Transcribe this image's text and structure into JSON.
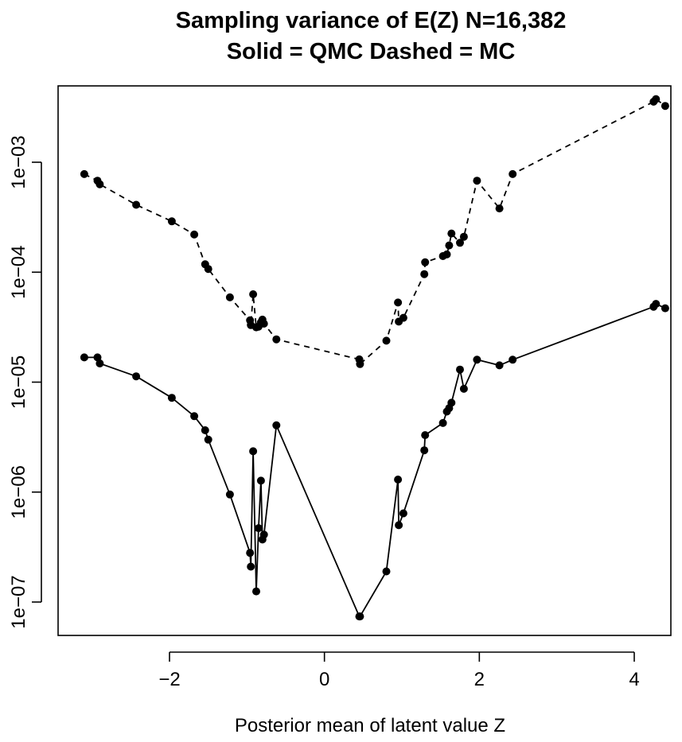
{
  "chart_data": {
    "type": "line",
    "title": "Sampling variance of E(Z)  N=16,382",
    "subtitle": "Solid = QMC   Dashed = MC",
    "xlabel": "Posterior mean of latent value Z",
    "ylabel": "",
    "x_scale": "linear",
    "y_scale": "log",
    "xlim": [
      -3.2,
      4.45
    ],
    "ylim": [
      5e-08,
      0.008
    ],
    "x_ticks": [
      -2,
      0,
      2,
      4
    ],
    "x_tick_labels": [
      "−2",
      "0",
      "2",
      "4"
    ],
    "y_ticks": [
      1e-07,
      1e-06,
      1e-05,
      0.0001,
      0.001
    ],
    "y_tick_labels": [
      "1e−07",
      "1e−06",
      "1e−05",
      "1e−04",
      "1e−03"
    ],
    "grid": false,
    "legend": "none",
    "series": [
      {
        "line_style": "dashed",
        "color": "#000000",
        "x": [
          -3.1,
          -2.93,
          -2.9,
          -2.43,
          -1.97,
          -1.68,
          -1.54,
          -1.5,
          -1.22,
          -0.96,
          -0.95,
          -0.92,
          -0.88,
          -0.85,
          -0.82,
          -0.8,
          -0.78,
          -0.62,
          0.45,
          0.46,
          0.8,
          0.95,
          0.96,
          1.02,
          1.29,
          1.3,
          1.53,
          1.58,
          1.61,
          1.64,
          1.75,
          1.8,
          1.97,
          2.26,
          2.43,
          4.25,
          4.28,
          4.4
        ],
        "y": [
          0.00078,
          0.00068,
          0.00063,
          0.00041,
          0.00029,
          0.00022,
          0.000118,
          0.000107,
          5.9e-05,
          3.65e-05,
          3.3e-05,
          6.3e-05,
          3.15e-05,
          3.2e-05,
          3.5e-05,
          3.7e-05,
          3.4e-05,
          2.45e-05,
          1.61e-05,
          1.46e-05,
          2.38e-05,
          5.3e-05,
          3.55e-05,
          3.85e-05,
          9.6e-05,
          0.000123,
          0.00014,
          0.000145,
          0.000175,
          0.000225,
          0.000185,
          0.00021,
          0.00068,
          0.00038,
          0.00078,
          0.00355,
          0.00375,
          0.00325
        ]
      },
      {
        "line_style": "solid",
        "color": "#000000",
        "x": [
          -3.1,
          -2.93,
          -2.9,
          -2.43,
          -1.97,
          -1.68,
          -1.54,
          -1.5,
          -1.22,
          -0.96,
          -0.95,
          -0.92,
          -0.88,
          -0.85,
          -0.82,
          -0.8,
          -0.78,
          -0.62,
          0.45,
          0.46,
          0.8,
          0.95,
          0.96,
          1.02,
          1.29,
          1.3,
          1.53,
          1.58,
          1.61,
          1.64,
          1.75,
          1.8,
          1.97,
          2.26,
          2.43,
          4.25,
          4.28,
          4.4
        ],
        "y": [
          1.68e-05,
          1.68e-05,
          1.48e-05,
          1.13e-05,
          7.2e-06,
          4.9e-06,
          3.65e-06,
          3e-06,
          9.5e-07,
          2.8e-07,
          2.1e-07,
          2.35e-06,
          1.25e-07,
          4.7e-07,
          1.27e-06,
          3.7e-07,
          4.1e-07,
          4.05e-06,
          7.4e-08,
          7.4e-08,
          1.9e-07,
          1.3e-06,
          5e-07,
          6.4e-07,
          2.4e-06,
          3.3e-06,
          4.25e-06,
          5.4e-06,
          5.8e-06,
          6.5e-06,
          1.3e-05,
          8.7e-06,
          1.6e-05,
          1.42e-05,
          1.6e-05,
          4.85e-05,
          5.15e-05,
          4.7e-05
        ]
      }
    ]
  }
}
